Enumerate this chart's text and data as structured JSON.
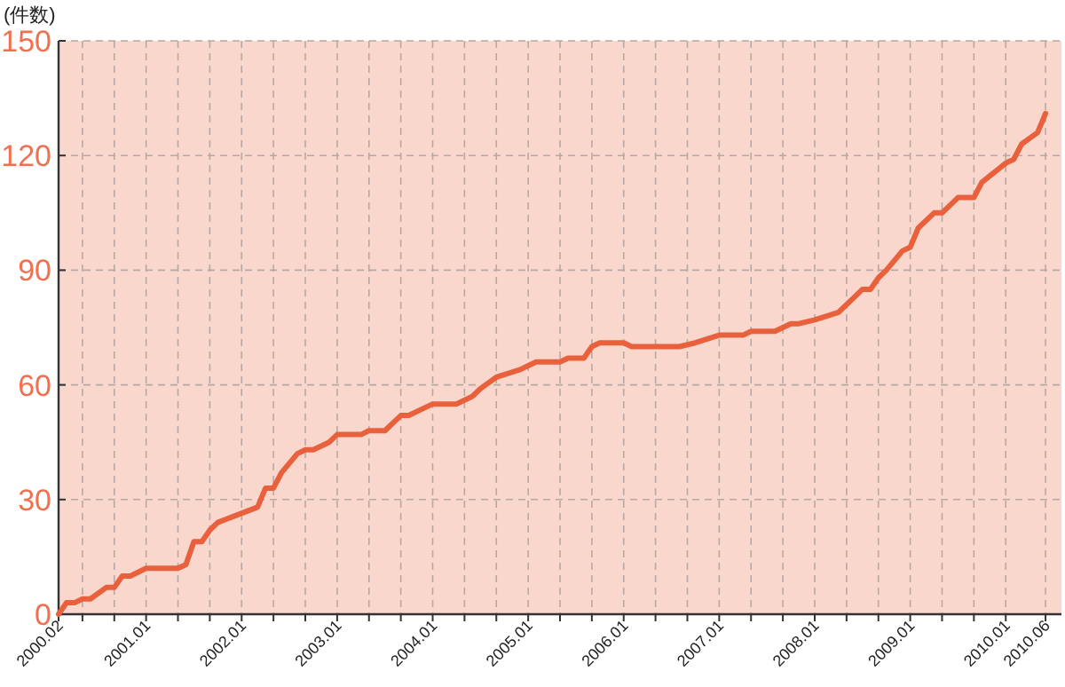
{
  "chart_data": {
    "type": "line",
    "ylabel": "(件数)",
    "x": [
      "2000-02",
      "2000-03",
      "2000-04",
      "2000-05",
      "2000-06",
      "2000-08",
      "2000-09",
      "2000-10",
      "2000-11",
      "2001-01",
      "2001-05",
      "2001-06",
      "2001-07",
      "2001-08",
      "2001-09",
      "2001-10",
      "2002-03",
      "2002-04",
      "2002-05",
      "2002-06",
      "2002-08",
      "2002-09",
      "2002-10",
      "2002-12",
      "2003-01",
      "2003-04",
      "2003-05",
      "2003-07",
      "2003-09",
      "2003-10",
      "2004-01",
      "2004-04",
      "2004-06",
      "2004-07",
      "2004-09",
      "2004-12",
      "2005-01",
      "2005-02",
      "2005-05",
      "2005-06",
      "2005-08",
      "2005-09",
      "2005-10",
      "2006-01",
      "2006-02",
      "2006-08",
      "2006-10",
      "2007-01",
      "2007-04",
      "2007-05",
      "2007-08",
      "2007-10",
      "2007-11",
      "2008-01",
      "2008-04",
      "2008-06",
      "2008-07",
      "2008-08",
      "2008-09",
      "2008-10",
      "2008-12",
      "2009-01",
      "2009-02",
      "2009-04",
      "2009-05",
      "2009-07",
      "2009-09",
      "2009-10",
      "2010-01",
      "2010-02",
      "2010-03",
      "2010-05",
      "2010-06"
    ],
    "series": [
      {
        "color": "#e8603c",
        "values": [
          0,
          3,
          3,
          4,
          4,
          7,
          7,
          10,
          10,
          12,
          12,
          13,
          19,
          19,
          22,
          24,
          28,
          33,
          33,
          37,
          42,
          43,
          43,
          45,
          47,
          47,
          48,
          48,
          52,
          52,
          55,
          55,
          57,
          59,
          62,
          64,
          65,
          66,
          66,
          67,
          67,
          70,
          71,
          71,
          70,
          70,
          71,
          73,
          73,
          74,
          74,
          76,
          76,
          77,
          79,
          83,
          85,
          85,
          88,
          90,
          95,
          96,
          101,
          105,
          105,
          109,
          109,
          113,
          118,
          119,
          123,
          126,
          131
        ]
      }
    ],
    "xlim": [
      "2000-02",
      "2010-08"
    ],
    "xticks": [
      {
        "value": "2000-02",
        "label": "2000.02"
      },
      {
        "value": "2000-05",
        "label": null
      },
      {
        "value": "2000-09",
        "label": null
      },
      {
        "value": "2001-01",
        "label": "2001.01"
      },
      {
        "value": "2001-05",
        "label": null
      },
      {
        "value": "2001-09",
        "label": null
      },
      {
        "value": "2002-01",
        "label": "2002.01"
      },
      {
        "value": "2002-05",
        "label": null
      },
      {
        "value": "2002-09",
        "label": null
      },
      {
        "value": "2003-01",
        "label": "2003.01"
      },
      {
        "value": "2003-05",
        "label": null
      },
      {
        "value": "2003-09",
        "label": null
      },
      {
        "value": "2004-01",
        "label": "2004.01"
      },
      {
        "value": "2004-05",
        "label": null
      },
      {
        "value": "2004-09",
        "label": null
      },
      {
        "value": "2005-01",
        "label": "2005.01"
      },
      {
        "value": "2005-05",
        "label": null
      },
      {
        "value": "2005-09",
        "label": null
      },
      {
        "value": "2006-01",
        "label": "2006.01"
      },
      {
        "value": "2006-05",
        "label": null
      },
      {
        "value": "2006-09",
        "label": null
      },
      {
        "value": "2007-01",
        "label": "2007.01"
      },
      {
        "value": "2007-05",
        "label": null
      },
      {
        "value": "2007-09",
        "label": null
      },
      {
        "value": "2008-01",
        "label": "2008.01"
      },
      {
        "value": "2008-05",
        "label": null
      },
      {
        "value": "2008-09",
        "label": null
      },
      {
        "value": "2009-01",
        "label": "2009.01"
      },
      {
        "value": "2009-05",
        "label": null
      },
      {
        "value": "2009-09",
        "label": null
      },
      {
        "value": "2010-01",
        "label": "2010.01"
      },
      {
        "value": "2010-06",
        "label": "2010.06"
      }
    ],
    "ylim": [
      0,
      150
    ],
    "yticks": [
      0,
      30,
      60,
      90,
      120,
      150
    ],
    "grid": true,
    "marker": "none",
    "line_style": "solid"
  }
}
